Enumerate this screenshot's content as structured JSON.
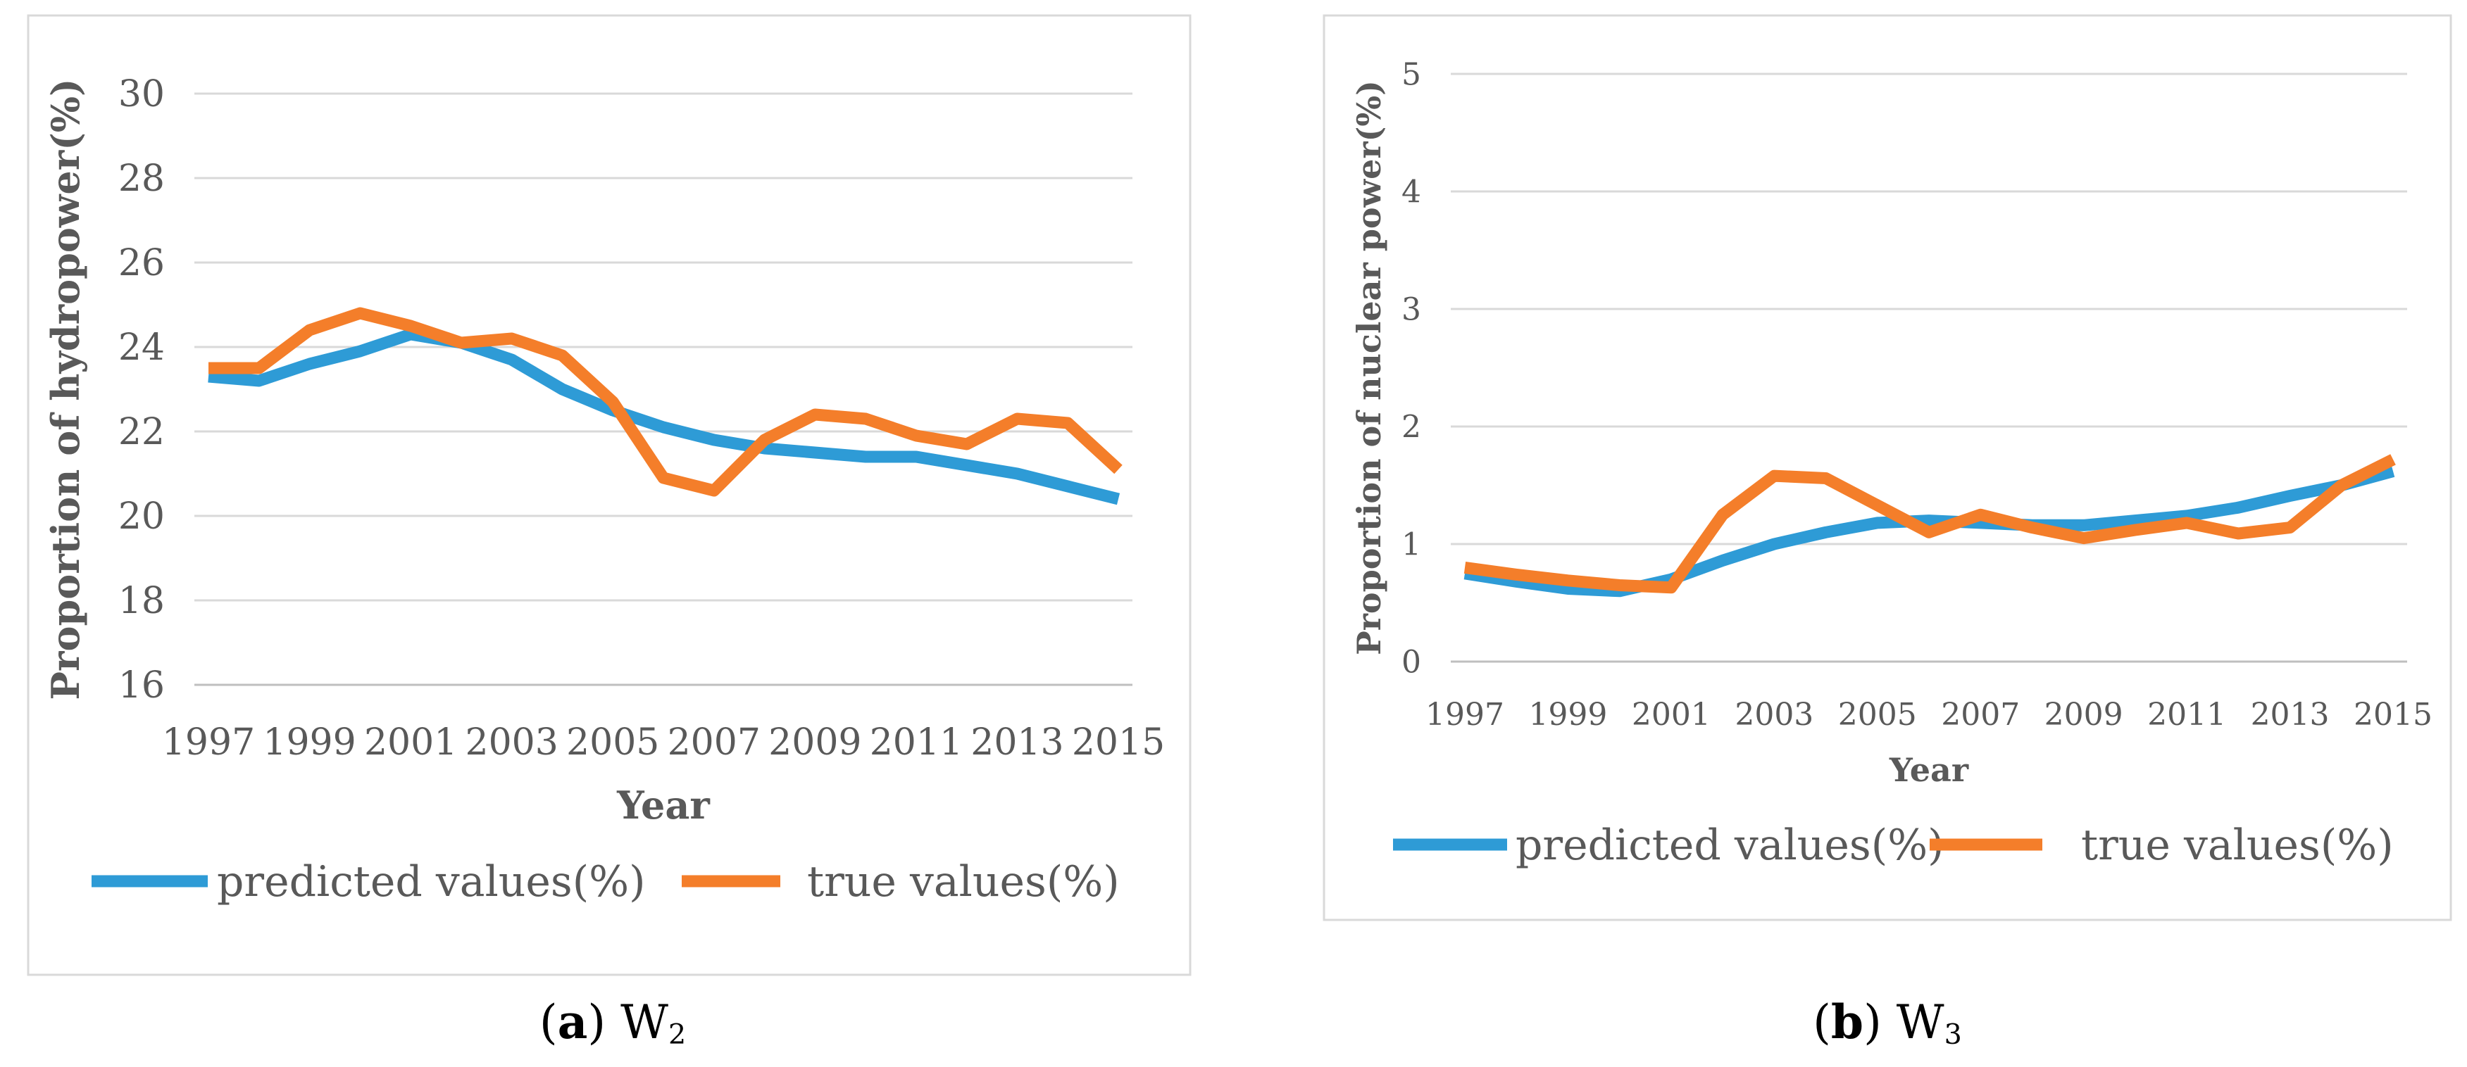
{
  "chart_data": [
    {
      "type": "line",
      "ylabel": "Proportion of hydropower(%)",
      "xlabel": "Year",
      "ylim": [
        16,
        30
      ],
      "yticks": [
        16,
        18,
        20,
        22,
        24,
        26,
        28,
        30
      ],
      "x": [
        1997,
        1998,
        1999,
        2000,
        2001,
        2002,
        2003,
        2004,
        2005,
        2006,
        2007,
        2008,
        2009,
        2010,
        2011,
        2012,
        2013,
        2014,
        2015
      ],
      "xticklabels": [
        "1997",
        "1999",
        "2001",
        "2003",
        "2005",
        "2007",
        "2009",
        "2011",
        "2013",
        "2015"
      ],
      "series": [
        {
          "name": "predicted values(%)",
          "color": "#2e9bd6",
          "values": [
            23.3,
            23.2,
            23.6,
            23.9,
            24.3,
            24.1,
            23.7,
            23.0,
            22.5,
            22.1,
            21.8,
            21.6,
            21.5,
            21.4,
            21.4,
            21.2,
            21.0,
            20.7,
            20.4
          ]
        },
        {
          "name": "true values(%)",
          "color": "#f47e2a",
          "values": [
            23.5,
            23.5,
            24.4,
            24.8,
            24.5,
            24.1,
            24.2,
            23.8,
            22.7,
            20.9,
            20.6,
            21.8,
            22.4,
            22.3,
            21.9,
            21.7,
            22.3,
            22.2,
            21.1
          ]
        }
      ],
      "caption_label": "a",
      "caption_text": "W",
      "caption_sub": "2"
    },
    {
      "type": "line",
      "ylabel": "Proportion of nuclear power(%)",
      "xlabel": "Year",
      "ylim": [
        0,
        5
      ],
      "yticks": [
        0,
        1,
        2,
        3,
        4,
        5
      ],
      "x": [
        1997,
        1998,
        1999,
        2000,
        2001,
        2002,
        2003,
        2004,
        2005,
        2006,
        2007,
        2008,
        2009,
        2010,
        2011,
        2012,
        2013,
        2014,
        2015
      ],
      "xticklabels": [
        "1997",
        "1999",
        "2001",
        "2003",
        "2005",
        "2007",
        "2009",
        "2011",
        "2013",
        "2015"
      ],
      "series": [
        {
          "name": "predicted values(%)",
          "color": "#2e9bd6",
          "values": [
            0.75,
            0.68,
            0.62,
            0.6,
            0.7,
            0.86,
            1.0,
            1.1,
            1.18,
            1.2,
            1.18,
            1.16,
            1.16,
            1.2,
            1.24,
            1.31,
            1.41,
            1.5,
            1.62
          ]
        },
        {
          "name": "true values(%)",
          "color": "#f47e2a",
          "values": [
            0.8,
            0.74,
            0.69,
            0.65,
            0.63,
            1.25,
            1.58,
            1.56,
            1.33,
            1.1,
            1.25,
            1.14,
            1.05,
            1.12,
            1.18,
            1.09,
            1.14,
            1.5,
            1.72
          ]
        }
      ],
      "caption_label": "b",
      "caption_text": "W",
      "caption_sub": "3"
    }
  ]
}
